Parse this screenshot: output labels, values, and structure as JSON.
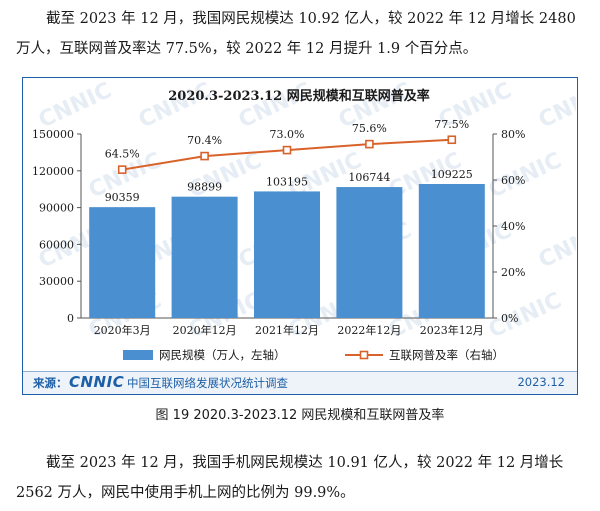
{
  "paragraph_1": "截至 2023 年 12 月，我国网民规模达 10.92 亿人，较 2022 年 12 月增长 2480 万人，互联网普及率达 77.5%，较 2022 年 12 月提升 1.9 个百分点。",
  "paragraph_2": "截至 2023 年 12 月，我国手机网民规模达 10.91 亿人，较 2022 年 12 月增长 2562 万人，网民中使用手机上网的比例为 99.9%。",
  "figure_caption": "图 19  2020.3-2023.12 网民规模和互联网普及率",
  "watermark": "CNNIC",
  "source": {
    "label": "来源：",
    "logo": "CNNIC",
    "org": "中国互联网络发展状况统计调查",
    "date": "2023.12"
  },
  "chart_data": {
    "type": "bar",
    "title": "2020.3-2023.12 网民规模和互联网普及率",
    "categories": [
      "2020年3月",
      "2020年12月",
      "2021年12月",
      "2022年12月",
      "2023年12月"
    ],
    "series": [
      {
        "name": "网民规模（万人，左轴）",
        "type": "bar",
        "axis": "left",
        "values": [
          90359,
          98899,
          103195,
          106744,
          109225
        ],
        "data_labels": [
          "90359",
          "98899",
          "103195",
          "106744",
          "109225"
        ],
        "color": "#4a8fcf"
      },
      {
        "name": "互联网普及率（右轴）",
        "type": "line",
        "axis": "right",
        "values": [
          64.5,
          70.4,
          73.0,
          75.6,
          77.5
        ],
        "data_labels": [
          "64.5%",
          "70.4%",
          "73.0%",
          "75.6%",
          "77.5%"
        ],
        "color": "#d9622b"
      }
    ],
    "y_left": {
      "ylim": [
        0,
        150000
      ],
      "ticks": [
        "0",
        "30000",
        "60000",
        "90000",
        "120000",
        "150000"
      ]
    },
    "y_right": {
      "ylim": [
        0,
        80
      ],
      "ticks": [
        "0%",
        "20%",
        "40%",
        "60%",
        "80%"
      ]
    },
    "grid": false,
    "legend_position": "bottom"
  }
}
